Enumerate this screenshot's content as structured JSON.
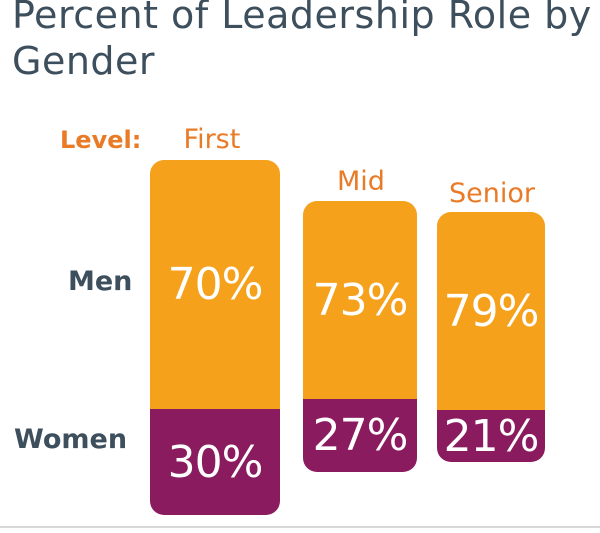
{
  "chart_data": {
    "type": "bar",
    "stacked": true,
    "title": "Percent of Leadership Role by Gender",
    "category_axis_label": "Level:",
    "categories": [
      "First",
      "Mid",
      "Senior"
    ],
    "series": [
      {
        "name": "Men",
        "values": [
          70,
          73,
          79
        ],
        "labels": [
          "70%",
          "73%",
          "79%"
        ]
      },
      {
        "name": "Women",
        "values": [
          30,
          27,
          21
        ],
        "labels": [
          "30%",
          "27%",
          "21%"
        ]
      }
    ],
    "unit": "%",
    "legend": "row labels on left",
    "colors": {
      "Men": "#f5a11c",
      "Women": "#8a1b5f"
    }
  }
}
